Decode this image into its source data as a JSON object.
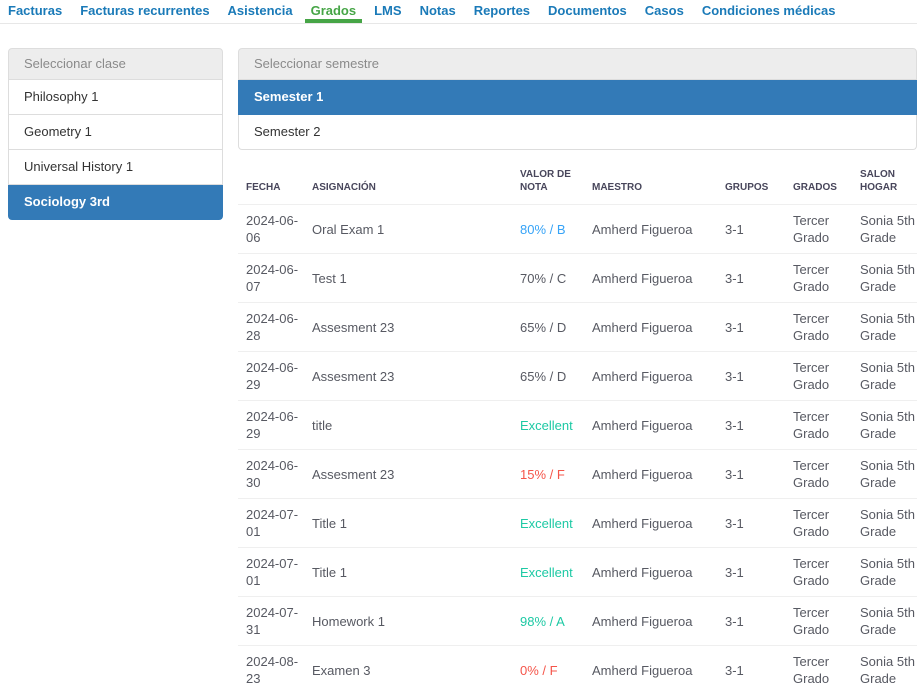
{
  "palette": {
    "link_blue": "#1a7ab8",
    "accent_green": "#46a546",
    "selected_blue": "#337ab7",
    "info_blue": "#36a3f7",
    "success_teal": "#1dc9a4",
    "danger_red": "#f5554a",
    "header_text": "#48465b",
    "body_text": "#575962",
    "muted_grey": "#8a8a8a"
  },
  "nav": {
    "tabs": [
      {
        "label": "Facturas",
        "active": false
      },
      {
        "label": "Facturas recurrentes",
        "active": false
      },
      {
        "label": "Asistencia",
        "active": false
      },
      {
        "label": "Grados",
        "active": true
      },
      {
        "label": "LMS",
        "active": false
      },
      {
        "label": "Notas",
        "active": false
      },
      {
        "label": "Reportes",
        "active": false
      },
      {
        "label": "Documentos",
        "active": false
      },
      {
        "label": "Casos",
        "active": false
      },
      {
        "label": "Condiciones médicas",
        "active": false
      }
    ]
  },
  "class_panel": {
    "header": "Seleccionar clase",
    "items": [
      {
        "label": "Philosophy 1",
        "selected": false
      },
      {
        "label": "Geometry 1",
        "selected": false
      },
      {
        "label": "Universal History 1",
        "selected": false
      },
      {
        "label": "Sociology 3rd",
        "selected": true
      }
    ]
  },
  "semester_panel": {
    "header": "Seleccionar semestre",
    "items": [
      {
        "label": "Semester 1",
        "selected": true
      },
      {
        "label": "Semester 2",
        "selected": false
      }
    ]
  },
  "grades_table": {
    "columns": [
      {
        "key": "fecha",
        "label": "FECHA"
      },
      {
        "key": "asignacion",
        "label": "ASIGNACIÓN"
      },
      {
        "key": "valor",
        "label": "VALOR DE NOTA"
      },
      {
        "key": "maestro",
        "label": "MAESTRO"
      },
      {
        "key": "grupos",
        "label": "GRUPOS"
      },
      {
        "key": "grados",
        "label": "GRADOS"
      },
      {
        "key": "salon",
        "label": "SALON HOGAR"
      }
    ],
    "rows": [
      {
        "fecha": "2024-06-06",
        "asignacion": "Oral Exam 1",
        "valor": {
          "text": "80% / B",
          "tone": "info"
        },
        "maestro": "Amherd Figueroa",
        "grupos": "3-1",
        "grados": "Tercer Grado",
        "salon": "Sonia 5th Grade"
      },
      {
        "fecha": "2024-06-07",
        "asignacion": "Test 1",
        "valor": {
          "text": "70% / C",
          "tone": "normal"
        },
        "maestro": "Amherd Figueroa",
        "grupos": "3-1",
        "grados": "Tercer Grado",
        "salon": "Sonia 5th Grade"
      },
      {
        "fecha": "2024-06-28",
        "asignacion": "Assesment 23",
        "valor": {
          "text": "65% / D",
          "tone": "normal"
        },
        "maestro": "Amherd Figueroa",
        "grupos": "3-1",
        "grados": "Tercer Grado",
        "salon": "Sonia 5th Grade"
      },
      {
        "fecha": "2024-06-29",
        "asignacion": "Assesment 23",
        "valor": {
          "text": "65% / D",
          "tone": "normal"
        },
        "maestro": "Amherd Figueroa",
        "grupos": "3-1",
        "grados": "Tercer Grado",
        "salon": "Sonia 5th Grade"
      },
      {
        "fecha": "2024-06-29",
        "asignacion": "title",
        "valor": {
          "text": "Excellent",
          "tone": "success"
        },
        "maestro": "Amherd Figueroa",
        "grupos": "3-1",
        "grados": "Tercer Grado",
        "salon": "Sonia 5th Grade"
      },
      {
        "fecha": "2024-06-30",
        "asignacion": "Assesment 23",
        "valor": {
          "text": "15% / F",
          "tone": "danger"
        },
        "maestro": "Amherd Figueroa",
        "grupos": "3-1",
        "grados": "Tercer Grado",
        "salon": "Sonia 5th Grade"
      },
      {
        "fecha": "2024-07-01",
        "asignacion": "Title 1",
        "valor": {
          "text": "Excellent",
          "tone": "success"
        },
        "maestro": "Amherd Figueroa",
        "grupos": "3-1",
        "grados": "Tercer Grado",
        "salon": "Sonia 5th Grade"
      },
      {
        "fecha": "2024-07-01",
        "asignacion": "Title 1",
        "valor": {
          "text": "Excellent",
          "tone": "success"
        },
        "maestro": "Amherd Figueroa",
        "grupos": "3-1",
        "grados": "Tercer Grado",
        "salon": "Sonia 5th Grade"
      },
      {
        "fecha": "2024-07-31",
        "asignacion": "Homework 1",
        "valor": {
          "text": "98% / A",
          "tone": "success"
        },
        "maestro": "Amherd Figueroa",
        "grupos": "3-1",
        "grados": "Tercer Grado",
        "salon": "Sonia 5th Grade"
      },
      {
        "fecha": "2024-08-23",
        "asignacion": "Examen 3",
        "valor": {
          "text": "0% / F",
          "tone": "danger"
        },
        "maestro": "Amherd Figueroa",
        "grupos": "3-1",
        "grados": "Tercer Grado",
        "salon": "Sonia 5th Grade"
      }
    ]
  }
}
